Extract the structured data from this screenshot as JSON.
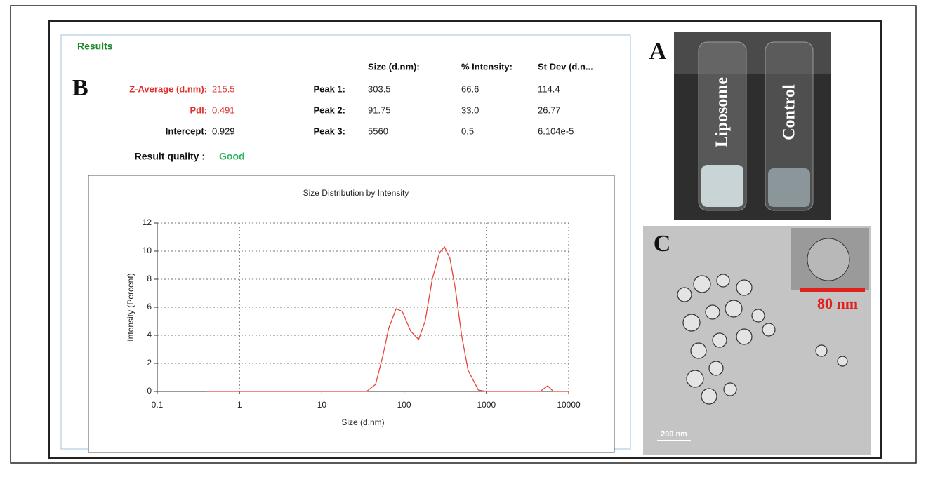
{
  "panel_b": {
    "label": "B",
    "header": "Results",
    "summary": [
      {
        "label": "Z-Average (d.nm):",
        "value": "215.5",
        "color": "#e0302c"
      },
      {
        "label": "PdI:",
        "value": "0.491",
        "color": "#e0302c"
      },
      {
        "label": "Intercept:",
        "value": "0.929",
        "color": "#111111"
      }
    ],
    "result_quality": {
      "label": "Result quality :",
      "value": "Good"
    },
    "peaks_table": {
      "columns": [
        "Size (d.nm):",
        "% Intensity:",
        "St Dev (d.n..."
      ],
      "rows": [
        {
          "label": "Peak 1:",
          "values": [
            "303.5",
            "66.6",
            "114.4"
          ]
        },
        {
          "label": "Peak 2:",
          "values": [
            "91.75",
            "33.0",
            "26.77"
          ]
        },
        {
          "label": "Peak 3:",
          "values": [
            "5560",
            "0.5",
            "6.104e-5"
          ]
        }
      ]
    }
  },
  "chart_data": {
    "type": "line",
    "title": "Size Distribution by Intensity",
    "x_label": "Size (d.nm)",
    "y_label": "Intensity (Percent)",
    "x_scale": "log",
    "x": [
      0.4,
      1,
      10,
      35,
      45,
      55,
      65,
      80,
      95,
      120,
      150,
      180,
      220,
      270,
      310,
      360,
      420,
      500,
      600,
      800,
      1000,
      4500,
      5560,
      6500,
      10000
    ],
    "values": [
      0,
      0,
      0,
      0,
      0.5,
      2.5,
      4.5,
      5.9,
      5.7,
      4.3,
      3.7,
      5.0,
      8.0,
      9.9,
      10.3,
      9.5,
      7.3,
      4.0,
      1.5,
      0.1,
      0,
      0,
      0.4,
      0,
      0
    ],
    "color": "#e8443c",
    "xlim": [
      0.1,
      10000
    ],
    "xticks": [
      0.1,
      1,
      10,
      100,
      1000,
      10000
    ],
    "ylim": [
      0,
      12
    ],
    "yticks": [
      0,
      2,
      4,
      6,
      8,
      10,
      12
    ],
    "grid": true
  },
  "panel_a": {
    "label": "A",
    "vials": [
      "Liposome",
      "Control"
    ]
  },
  "panel_c": {
    "label": "C",
    "inset_scale": "80 nm",
    "scale_bar": "200 nm"
  }
}
